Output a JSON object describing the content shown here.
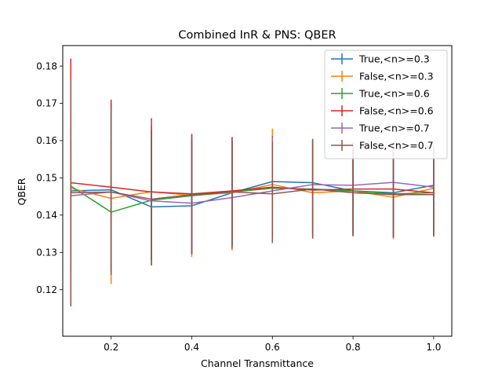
{
  "chart_data": {
    "type": "line",
    "title": "Combined InR & PNS: QBER",
    "xlabel": "Channel Transmittance",
    "ylabel": "QBER",
    "xlim": [
      0.08,
      1.045
    ],
    "ylim": [
      0.1075,
      0.1855
    ],
    "xticks": [
      0.2,
      0.4,
      0.6,
      0.8,
      1.0
    ],
    "xtick_labels": [
      "0.2",
      "0.4",
      "0.6",
      "0.8",
      "1.0"
    ],
    "yticks": [
      0.12,
      0.13,
      0.14,
      0.15,
      0.16,
      0.17,
      0.18
    ],
    "ytick_labels": [
      "0.12",
      "0.13",
      "0.14",
      "0.15",
      "0.16",
      "0.17",
      "0.18"
    ],
    "grid": false,
    "legend_position": "upper right",
    "error_bars": "vertical",
    "x": [
      0.1,
      0.2,
      0.3,
      0.4,
      0.5,
      0.6,
      0.7,
      0.8,
      0.9,
      1.0
    ],
    "series": [
      {
        "name": "True,<n>=0.3",
        "color": "#1f77b4",
        "values": [
          0.1465,
          0.1468,
          0.1422,
          0.1425,
          0.146,
          0.149,
          0.1487,
          0.1465,
          0.146,
          0.148
        ],
        "err_low": [
          0.14,
          0.125,
          0.128,
          0.13,
          0.132,
          0.134,
          0.135,
          0.135,
          0.135,
          0.135
        ],
        "err_high": [
          0.158,
          0.17,
          0.163,
          0.16,
          0.16,
          0.16,
          0.16,
          0.158,
          0.158,
          0.158
        ]
      },
      {
        "name": "False,<n>=0.3",
        "color": "#ff7f0e",
        "values": [
          0.1472,
          0.1445,
          0.1463,
          0.1453,
          0.146,
          0.1482,
          0.146,
          0.1465,
          0.1448,
          0.1472
        ],
        "err_low": [
          0.128,
          0.1215,
          0.128,
          0.1288,
          0.1305,
          0.134,
          0.134,
          0.1345,
          0.1335,
          0.1345
        ],
        "err_high": [
          0.16,
          0.168,
          0.164,
          0.161,
          0.16,
          0.1632,
          0.16,
          0.1585,
          0.158,
          0.158
        ]
      },
      {
        "name": "True,<n>=0.6",
        "color": "#2ca02c",
        "values": [
          0.1478,
          0.1408,
          0.144,
          0.1452,
          0.1462,
          0.1472,
          0.147,
          0.1465,
          0.1457,
          0.146
        ],
        "err_low": [
          0.125,
          0.125,
          0.13,
          0.13,
          0.132,
          0.134,
          0.135,
          0.135,
          0.134,
          0.135
        ],
        "err_high": [
          0.16,
          0.16,
          0.16,
          0.16,
          0.16,
          0.16,
          0.16,
          0.158,
          0.158,
          0.158
        ]
      },
      {
        "name": "False,<n>=0.6",
        "color": "#d62728",
        "values": [
          0.1487,
          0.1475,
          0.1462,
          0.1457,
          0.1465,
          0.1475,
          0.1467,
          0.147,
          0.147,
          0.146
        ],
        "err_low": [
          0.116,
          0.124,
          0.1265,
          0.1295,
          0.1315,
          0.133,
          0.134,
          0.1345,
          0.134,
          0.1345
        ],
        "err_high": [
          0.182,
          0.171,
          0.166,
          0.1618,
          0.161,
          0.1612,
          0.1602,
          0.1595,
          0.159,
          0.1585
        ]
      },
      {
        "name": "True,<n>=0.7",
        "color": "#9467bd",
        "values": [
          0.1452,
          0.1462,
          0.1438,
          0.1432,
          0.1447,
          0.1465,
          0.1482,
          0.148,
          0.1488,
          0.1475
        ],
        "err_low": [
          0.125,
          0.125,
          0.128,
          0.13,
          0.132,
          0.134,
          0.135,
          0.135,
          0.1355,
          0.135
        ],
        "err_high": [
          0.165,
          0.168,
          0.162,
          0.16,
          0.16,
          0.161,
          0.1605,
          0.1595,
          0.1595,
          0.159
        ]
      },
      {
        "name": "False,<n>=0.7",
        "color": "#8c564b",
        "values": [
          0.146,
          0.1462,
          0.1443,
          0.1455,
          0.1462,
          0.1457,
          0.147,
          0.146,
          0.1455,
          0.1455
        ],
        "err_low": [
          0.1155,
          0.124,
          0.1265,
          0.1295,
          0.131,
          0.1325,
          0.1337,
          0.1343,
          0.134,
          0.1342
        ],
        "err_high": [
          0.177,
          0.169,
          0.1625,
          0.1615,
          0.1608,
          0.1598,
          0.1603,
          0.1575,
          0.157,
          0.1565
        ]
      }
    ]
  }
}
